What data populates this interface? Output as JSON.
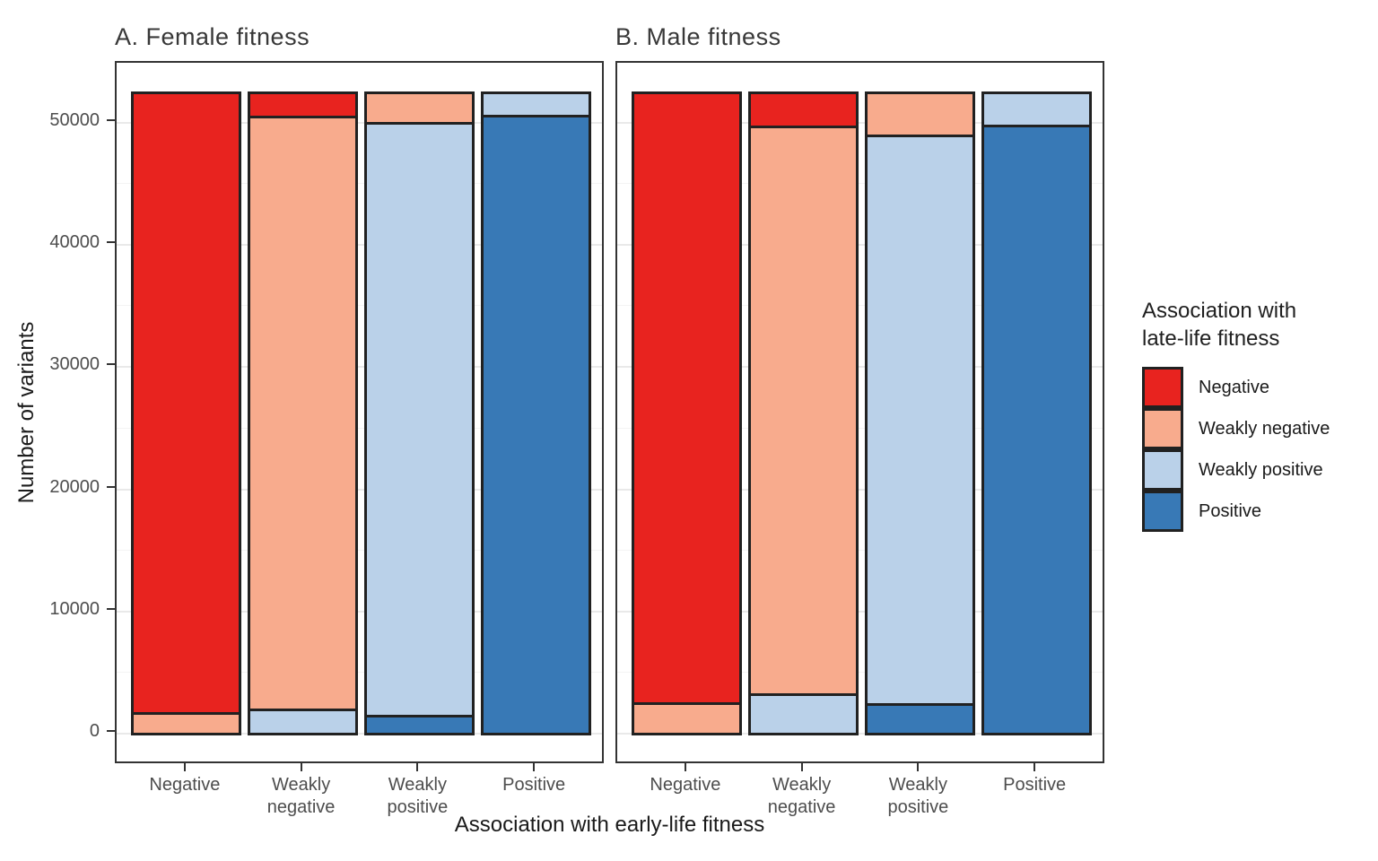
{
  "axes": {
    "y_title": "Number of variants",
    "x_title": "Association with early-life fitness",
    "y_ticks": [
      0,
      10000,
      20000,
      30000,
      40000,
      50000
    ],
    "y_minor_ticks": [
      5000,
      15000,
      25000,
      35000,
      45000
    ],
    "x_tick_labels": [
      "Negative",
      "Weakly\nnegative",
      "Weakly\npositive",
      "Positive"
    ]
  },
  "legend": {
    "title": "Association with\nlate-life fitness",
    "items": [
      {
        "label": "Negative",
        "color": "#e8231f"
      },
      {
        "label": "Weakly negative",
        "color": "#f8ab8d"
      },
      {
        "label": "Weakly positive",
        "color": "#bad1e9"
      },
      {
        "label": "Positive",
        "color": "#3879b6"
      }
    ]
  },
  "colors": {
    "negative": "#e8231f",
    "weakly_negative": "#f8ab8d",
    "weakly_positive": "#bad1e9",
    "positive": "#3879b6",
    "bar_outline": "#212121",
    "panel_border": "#333333",
    "grid_major": "#e9e9e9",
    "grid_minor": "#f4f4f4"
  },
  "chart_data": [
    {
      "type": "bar",
      "stacked": true,
      "title": "A. Female fitness",
      "xlabel": "Association with early-life fitness",
      "ylabel": "Number of variants",
      "ylim": [
        0,
        54900
      ],
      "yticks": [
        0,
        10000,
        20000,
        30000,
        40000,
        50000
      ],
      "grid": true,
      "legend_position": "right",
      "bar_total_each": 52300,
      "stack_order_top_to_bottom": [
        "Negative",
        "Weakly negative",
        "Weakly positive",
        "Positive"
      ],
      "categories": [
        "Negative",
        "Weakly negative",
        "Weakly positive",
        "Positive"
      ],
      "series": [
        {
          "name": "Negative",
          "color": "#e8231f",
          "values": [
            50600,
            1800,
            0,
            0
          ]
        },
        {
          "name": "Weakly negative",
          "color": "#f8ab8d",
          "values": [
            1700,
            48500,
            2300,
            0
          ]
        },
        {
          "name": "Weakly positive",
          "color": "#bad1e9",
          "values": [
            0,
            2000,
            48500,
            1700
          ]
        },
        {
          "name": "Positive",
          "color": "#3879b6",
          "values": [
            0,
            0,
            1500,
            50600
          ]
        }
      ]
    },
    {
      "type": "bar",
      "stacked": true,
      "title": "B. Male fitness",
      "xlabel": "Association with early-life fitness",
      "ylabel": "Number of variants",
      "ylim": [
        0,
        54900
      ],
      "yticks": [
        0,
        10000,
        20000,
        30000,
        40000,
        50000
      ],
      "grid": true,
      "legend_position": "right",
      "bar_total_each": 52300,
      "stack_order_top_to_bottom": [
        "Negative",
        "Weakly negative",
        "Weakly positive",
        "Positive"
      ],
      "categories": [
        "Negative",
        "Weakly negative",
        "Weakly positive",
        "Positive"
      ],
      "series": [
        {
          "name": "Negative",
          "color": "#e8231f",
          "values": [
            49800,
            2600,
            0,
            0
          ]
        },
        {
          "name": "Weakly negative",
          "color": "#f8ab8d",
          "values": [
            2500,
            46500,
            3300,
            0
          ]
        },
        {
          "name": "Weakly positive",
          "color": "#bad1e9",
          "values": [
            0,
            3200,
            46600,
            2500
          ]
        },
        {
          "name": "Positive",
          "color": "#3879b6",
          "values": [
            0,
            0,
            2400,
            49800
          ]
        }
      ]
    }
  ]
}
